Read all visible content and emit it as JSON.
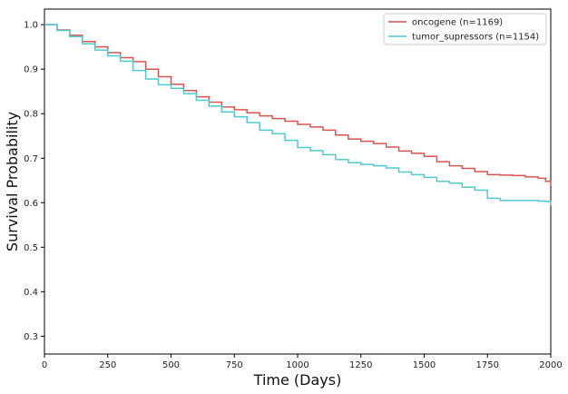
{
  "chart_data": {
    "type": "line",
    "step": true,
    "title": "",
    "xlabel": "Time (Days)",
    "ylabel": "Survival Probability",
    "xlim": [
      0,
      2000
    ],
    "ylim": [
      0.26,
      1.035
    ],
    "xticks": [
      0,
      250,
      500,
      750,
      1000,
      1250,
      1500,
      1750,
      2000
    ],
    "yticks": [
      0.3,
      0.4,
      0.5,
      0.6,
      0.7,
      0.8,
      0.9,
      1.0
    ],
    "xtick_labels": [
      "0",
      "250",
      "500",
      "750",
      "1000",
      "1250",
      "1500",
      "1750",
      "2000"
    ],
    "ytick_labels": [
      "0.3",
      "0.4",
      "0.5",
      "0.6",
      "0.7",
      "0.8",
      "0.9",
      "1.0"
    ],
    "grid": false,
    "legend_position": "top-right",
    "series": [
      {
        "name": "oncogene  (n=1169)",
        "color": "#d9534f",
        "x": [
          0,
          50,
          100,
          150,
          200,
          250,
          300,
          350,
          400,
          450,
          500,
          550,
          600,
          650,
          700,
          750,
          800,
          850,
          900,
          950,
          1000,
          1050,
          1100,
          1150,
          1200,
          1250,
          1300,
          1350,
          1400,
          1450,
          1500,
          1550,
          1600,
          1650,
          1700,
          1750,
          1800,
          1850,
          1900,
          1950,
          1980,
          2000
        ],
        "y": [
          1.0,
          0.988,
          0.976,
          0.962,
          0.95,
          0.937,
          0.926,
          0.917,
          0.9,
          0.883,
          0.866,
          0.852,
          0.838,
          0.826,
          0.815,
          0.809,
          0.802,
          0.795,
          0.789,
          0.783,
          0.776,
          0.77,
          0.763,
          0.752,
          0.743,
          0.738,
          0.733,
          0.725,
          0.716,
          0.711,
          0.704,
          0.692,
          0.683,
          0.677,
          0.67,
          0.663,
          0.662,
          0.661,
          0.658,
          0.655,
          0.648,
          0.638
        ]
      },
      {
        "name": "tumor_supressors  (n=1154)",
        "color": "#4ecad0",
        "x": [
          0,
          50,
          100,
          150,
          200,
          250,
          300,
          350,
          400,
          450,
          500,
          550,
          600,
          650,
          700,
          750,
          800,
          850,
          900,
          950,
          1000,
          1050,
          1100,
          1150,
          1200,
          1250,
          1300,
          1350,
          1400,
          1450,
          1500,
          1550,
          1600,
          1650,
          1700,
          1750,
          1800,
          1850,
          1900,
          1950,
          1980,
          2000
        ],
        "y": [
          1.0,
          0.987,
          0.973,
          0.957,
          0.943,
          0.93,
          0.918,
          0.897,
          0.878,
          0.865,
          0.857,
          0.845,
          0.83,
          0.817,
          0.804,
          0.793,
          0.78,
          0.763,
          0.755,
          0.74,
          0.724,
          0.717,
          0.708,
          0.697,
          0.69,
          0.686,
          0.683,
          0.678,
          0.669,
          0.663,
          0.657,
          0.648,
          0.644,
          0.635,
          0.628,
          0.61,
          0.605,
          0.605,
          0.605,
          0.604,
          0.603,
          0.594
        ]
      }
    ]
  }
}
